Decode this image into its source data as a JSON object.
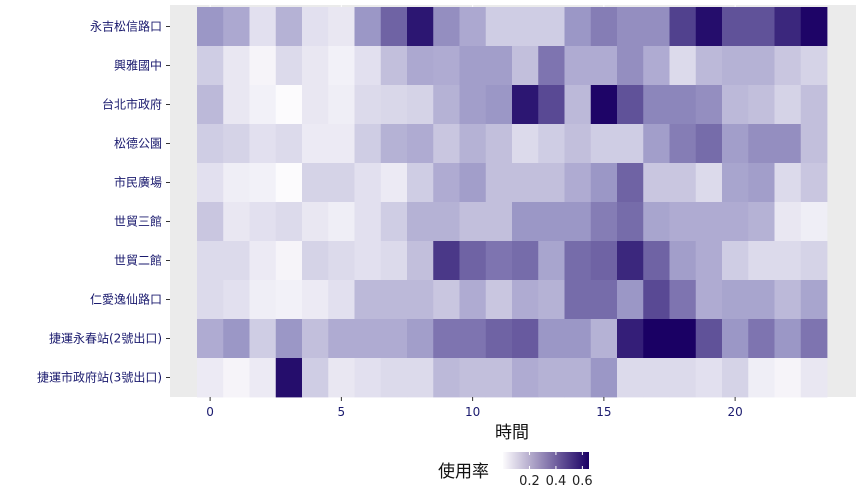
{
  "chart_data": {
    "type": "heatmap",
    "title": "",
    "xlabel": "時間",
    "ylabel": "",
    "x": [
      0,
      1,
      2,
      3,
      4,
      5,
      6,
      7,
      8,
      9,
      10,
      11,
      12,
      13,
      14,
      15,
      16,
      17,
      18,
      19,
      20,
      21,
      22,
      23
    ],
    "x_ticks": [
      0,
      5,
      10,
      15,
      20
    ],
    "xlim": [
      -0.5,
      23.5
    ],
    "grid": true,
    "legend_position": "bottom",
    "legend_title": "使用率",
    "legend_ticks": [
      0.2,
      0.4,
      0.6
    ],
    "legend_range": [
      0.0,
      0.65
    ],
    "color_low": "#fcfbfd",
    "color_high": "#1a0064",
    "rows": [
      {
        "name": "永吉松信路口",
        "values": [
          0.3,
          0.25,
          0.08,
          0.22,
          0.08,
          0.06,
          0.3,
          0.42,
          0.6,
          0.32,
          0.25,
          0.14,
          0.14,
          0.14,
          0.3,
          0.36,
          0.32,
          0.32,
          0.5,
          0.62,
          0.46,
          0.46,
          0.56,
          0.64
        ]
      },
      {
        "name": "興雅國中",
        "values": [
          0.14,
          0.06,
          0.02,
          0.1,
          0.06,
          0.03,
          0.08,
          0.18,
          0.25,
          0.24,
          0.28,
          0.28,
          0.18,
          0.38,
          0.24,
          0.24,
          0.32,
          0.24,
          0.1,
          0.2,
          0.22,
          0.22,
          0.16,
          0.12
        ]
      },
      {
        "name": "台北市政府",
        "values": [
          0.2,
          0.06,
          0.03,
          0.0,
          0.06,
          0.04,
          0.1,
          0.11,
          0.12,
          0.22,
          0.28,
          0.3,
          0.6,
          0.48,
          0.2,
          0.64,
          0.46,
          0.34,
          0.34,
          0.32,
          0.2,
          0.18,
          0.12,
          0.18
        ]
      },
      {
        "name": "松德公園",
        "values": [
          0.14,
          0.12,
          0.08,
          0.1,
          0.05,
          0.05,
          0.14,
          0.22,
          0.24,
          0.16,
          0.22,
          0.18,
          0.1,
          0.14,
          0.18,
          0.14,
          0.14,
          0.28,
          0.36,
          0.4,
          0.28,
          0.32,
          0.32,
          0.18
        ]
      },
      {
        "name": "市民廣場",
        "values": [
          0.08,
          0.04,
          0.03,
          0.0,
          0.12,
          0.12,
          0.08,
          0.05,
          0.14,
          0.24,
          0.28,
          0.18,
          0.18,
          0.18,
          0.24,
          0.3,
          0.42,
          0.16,
          0.16,
          0.1,
          0.26,
          0.28,
          0.1,
          0.16
        ]
      },
      {
        "name": "世貿三館",
        "values": [
          0.16,
          0.06,
          0.08,
          0.1,
          0.06,
          0.04,
          0.08,
          0.14,
          0.22,
          0.22,
          0.18,
          0.18,
          0.3,
          0.3,
          0.3,
          0.36,
          0.4,
          0.26,
          0.24,
          0.24,
          0.24,
          0.22,
          0.06,
          0.04
        ]
      },
      {
        "name": "世貿二館",
        "values": [
          0.1,
          0.1,
          0.05,
          0.02,
          0.12,
          0.1,
          0.08,
          0.1,
          0.18,
          0.52,
          0.42,
          0.38,
          0.4,
          0.26,
          0.4,
          0.42,
          0.56,
          0.42,
          0.28,
          0.24,
          0.14,
          0.1,
          0.1,
          0.12
        ]
      },
      {
        "name": "仁愛逸仙路口",
        "values": [
          0.1,
          0.08,
          0.04,
          0.03,
          0.05,
          0.08,
          0.2,
          0.2,
          0.2,
          0.16,
          0.24,
          0.16,
          0.24,
          0.22,
          0.4,
          0.4,
          0.3,
          0.48,
          0.38,
          0.24,
          0.26,
          0.26,
          0.2,
          0.26
        ]
      },
      {
        "name": "捷運永春站(2號出口)",
        "values": [
          0.24,
          0.3,
          0.14,
          0.3,
          0.18,
          0.24,
          0.24,
          0.24,
          0.28,
          0.38,
          0.38,
          0.42,
          0.44,
          0.3,
          0.3,
          0.22,
          0.58,
          0.7,
          0.68,
          0.46,
          0.3,
          0.38,
          0.3,
          0.38
        ]
      },
      {
        "name": "捷運市政府站(3號出口)",
        "values": [
          0.05,
          0.02,
          0.05,
          0.62,
          0.14,
          0.06,
          0.08,
          0.1,
          0.1,
          0.2,
          0.18,
          0.18,
          0.24,
          0.22,
          0.22,
          0.3,
          0.1,
          0.1,
          0.1,
          0.08,
          0.12,
          0.04,
          0.02,
          0.06
        ]
      }
    ]
  }
}
